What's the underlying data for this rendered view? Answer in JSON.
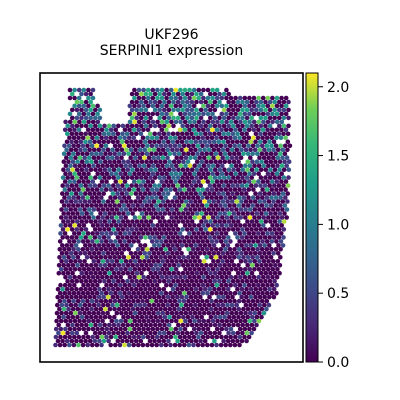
{
  "chart_data": {
    "type": "scatter",
    "title": "UKF296",
    "subtitle": "SERPINI1 expression",
    "xlabel": "",
    "ylabel": "",
    "grid": false,
    "colorbar": {
      "colormap": "viridis",
      "range": [
        0.0,
        2.1
      ],
      "ticks": [
        "0.0",
        "0.5",
        "1.0",
        "1.5",
        "2.0"
      ],
      "tick_values": [
        0.0,
        0.5,
        1.0,
        1.5,
        2.0
      ],
      "placement": "right"
    },
    "spots": {
      "description_values": "spatial transcriptomics spots, expression values 0.0 to ~2.1; tissue outline is a roughly rectangular section with a notch at the top-left",
      "value_min": 0.0,
      "value_max": 2.1,
      "notable_high_values": [
        2.1,
        2.0,
        1.9,
        1.8,
        1.7,
        1.6,
        1.5
      ]
    },
    "colors": {
      "viridis_low": "#440154",
      "viridis_mid": "#21918c",
      "viridis_high": "#fde725",
      "frame": "#000000"
    }
  }
}
